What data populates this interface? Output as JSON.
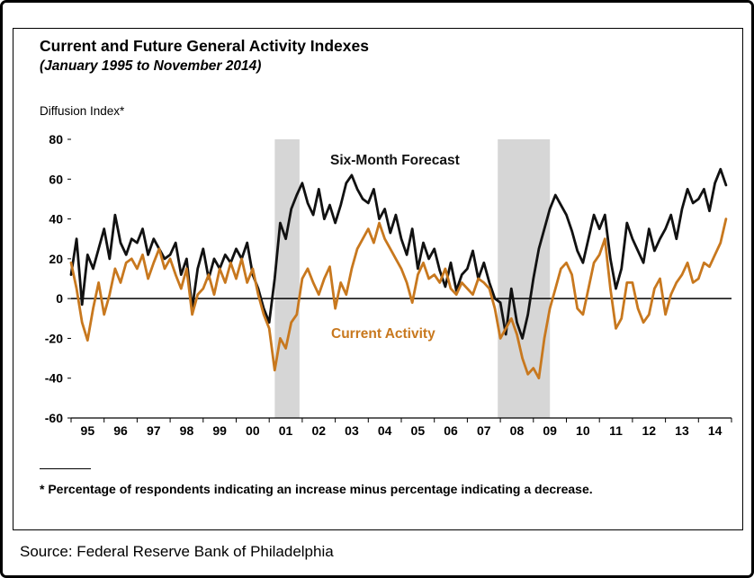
{
  "chart": {
    "title": "Current and Future General Activity Indexes",
    "subtitle": "(January 1995 to November 2014)",
    "axis_label": "Diffusion Index*",
    "footnote": "* Percentage of respondents indicating an increase minus percentage indicating a decrease.",
    "source": "Source: Federal Reserve Bank of  Philadelphia"
  },
  "chart_data": {
    "type": "line",
    "title": "Current and Future General Activity Indexes",
    "subtitle": "(January 1995 to November 2014)",
    "ylabel": "Diffusion Index*",
    "ylim": [
      -60,
      80
    ],
    "y_ticks": [
      80,
      60,
      40,
      20,
      0,
      -20,
      -40,
      -60
    ],
    "x_axis_range": [
      1995,
      2015
    ],
    "x_start": 1995,
    "points_per_year": 6,
    "x_tick_labels": [
      "95",
      "96",
      "97",
      "98",
      "99",
      "00",
      "01",
      "02",
      "03",
      "04",
      "05",
      "06",
      "07",
      "08",
      "09",
      "10",
      "11",
      "12",
      "13",
      "14"
    ],
    "grid": false,
    "legend_position": "inline-labels",
    "band_color": "#d6d6d6",
    "recession_bands": [
      [
        2001.17,
        2001.92
      ],
      [
        2007.92,
        2009.5
      ]
    ],
    "series": [
      {
        "id": "six-month-forecast",
        "name": "Six-Month Forecast",
        "color": "#111111",
        "values": [
          12,
          30,
          -3,
          22,
          15,
          25,
          35,
          20,
          42,
          28,
          22,
          30,
          28,
          35,
          22,
          30,
          25,
          20,
          22,
          28,
          12,
          20,
          -5,
          15,
          25,
          10,
          20,
          15,
          22,
          18,
          25,
          20,
          28,
          12,
          5,
          -5,
          -12,
          10,
          38,
          30,
          45,
          52,
          58,
          48,
          42,
          55,
          40,
          47,
          38,
          47,
          58,
          62,
          55,
          50,
          48,
          55,
          40,
          45,
          33,
          42,
          30,
          22,
          35,
          15,
          28,
          20,
          25,
          14,
          6,
          18,
          4,
          12,
          15,
          24,
          10,
          18,
          8,
          0,
          -2,
          -18,
          5,
          -12,
          -20,
          -8,
          10,
          25,
          35,
          45,
          52,
          47,
          42,
          34,
          24,
          18,
          30,
          42,
          35,
          42,
          20,
          5,
          15,
          38,
          30,
          24,
          18,
          35,
          24,
          30,
          35,
          42,
          30,
          45,
          55,
          48,
          50,
          55,
          44,
          58,
          65,
          57
        ]
      },
      {
        "id": "current-activity",
        "name": "Current Activity",
        "color": "#c8781e",
        "values": [
          18,
          5,
          -12,
          -21,
          -5,
          8,
          -8,
          2,
          15,
          8,
          18,
          20,
          15,
          22,
          10,
          18,
          25,
          15,
          20,
          12,
          5,
          15,
          -8,
          2,
          5,
          12,
          2,
          15,
          8,
          18,
          10,
          20,
          8,
          15,
          2,
          -8,
          -15,
          -36,
          -20,
          -25,
          -12,
          -8,
          10,
          15,
          8,
          2,
          10,
          16,
          -5,
          8,
          2,
          15,
          25,
          30,
          35,
          28,
          38,
          30,
          25,
          20,
          15,
          8,
          -2,
          12,
          18,
          10,
          12,
          8,
          15,
          5,
          2,
          8,
          5,
          2,
          10,
          8,
          5,
          -5,
          -20,
          -15,
          -10,
          -18,
          -30,
          -38,
          -35,
          -40,
          -20,
          -5,
          5,
          15,
          18,
          12,
          -5,
          -8,
          5,
          18,
          22,
          30,
          5,
          -15,
          -10,
          8,
          8,
          -5,
          -12,
          -8,
          5,
          10,
          -8,
          2,
          8,
          12,
          18,
          8,
          10,
          18,
          16,
          22,
          28,
          40
        ]
      }
    ]
  }
}
